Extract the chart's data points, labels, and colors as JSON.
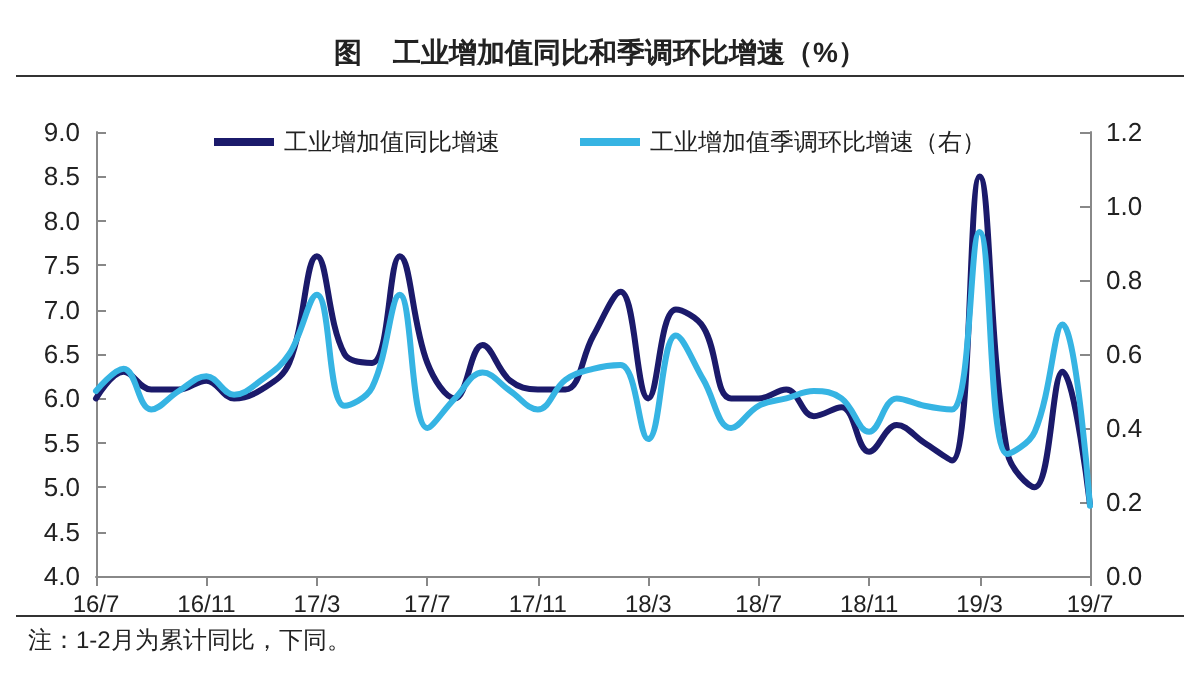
{
  "chart_data": {
    "type": "line",
    "title": "图    工业增加值同比和季调环比增速（%）",
    "annotations": [
      "注：1-2月为累计同比，下同。"
    ],
    "categories": [
      "16/7",
      null,
      null,
      null,
      "16/11",
      null,
      null,
      null,
      "17/3",
      null,
      null,
      null,
      "17/7",
      null,
      null,
      null,
      "17/11",
      null,
      null,
      null,
      "18/3",
      null,
      null,
      null,
      "18/7",
      null,
      null,
      null,
      "18/11",
      null,
      null,
      null,
      "19/3",
      null,
      null,
      null,
      "19/7"
    ],
    "series": [
      {
        "name": "工业增加值同比增速",
        "color": "#1b1a6b",
        "values": [
          6.0,
          6.3,
          6.1,
          6.1,
          6.2,
          6.0,
          6.1,
          6.4,
          7.6,
          6.5,
          6.4,
          7.6,
          6.4,
          6.0,
          6.6,
          6.2,
          6.1,
          6.1,
          6.7,
          7.2,
          6.0,
          7.0,
          6.8,
          6.0,
          6.0,
          6.1,
          5.8,
          5.9,
          5.4,
          5.7,
          5.5,
          5.3,
          8.5,
          5.4,
          5.0,
          6.3,
          4.8
        ]
      },
      {
        "name": "工业增加值季调环比增速（右）",
        "color": "#36b4e3",
        "axis": "y2",
        "values": [
          0.5,
          0.56,
          0.45,
          0.5,
          0.54,
          0.49,
          0.53,
          0.6,
          0.76,
          0.46,
          0.51,
          0.76,
          0.4,
          0.48,
          0.55,
          0.5,
          0.45,
          0.53,
          0.56,
          0.57,
          0.37,
          0.65,
          0.53,
          0.4,
          0.46,
          0.48,
          0.5,
          0.48,
          0.39,
          0.48,
          0.46,
          0.45,
          0.93,
          0.33,
          0.39,
          0.68,
          0.19
        ]
      }
    ],
    "ylim": [
      4.0,
      9.0
    ],
    "yticks": [
      {
        "value": 4,
        "label": "4.0"
      },
      4.5,
      {
        "value": 5,
        "label": "5.0"
      },
      5.5,
      {
        "value": 6,
        "label": "6.0"
      },
      6.5,
      {
        "value": 7,
        "label": "7.0"
      },
      7.5,
      {
        "value": 8,
        "label": "8.0"
      },
      8.5,
      {
        "value": 9,
        "label": "9.0"
      }
    ],
    "y2lim": [
      0,
      1.2
    ],
    "y2ticks": [
      {
        "value": 0,
        "label": "0.0"
      },
      0.2,
      0.4,
      0.6,
      0.8,
      {
        "value": 1,
        "label": "1.0"
      },
      1.2
    ],
    "legend": "top",
    "grid": false,
    "marker": "none",
    "line_style": "solid"
  }
}
